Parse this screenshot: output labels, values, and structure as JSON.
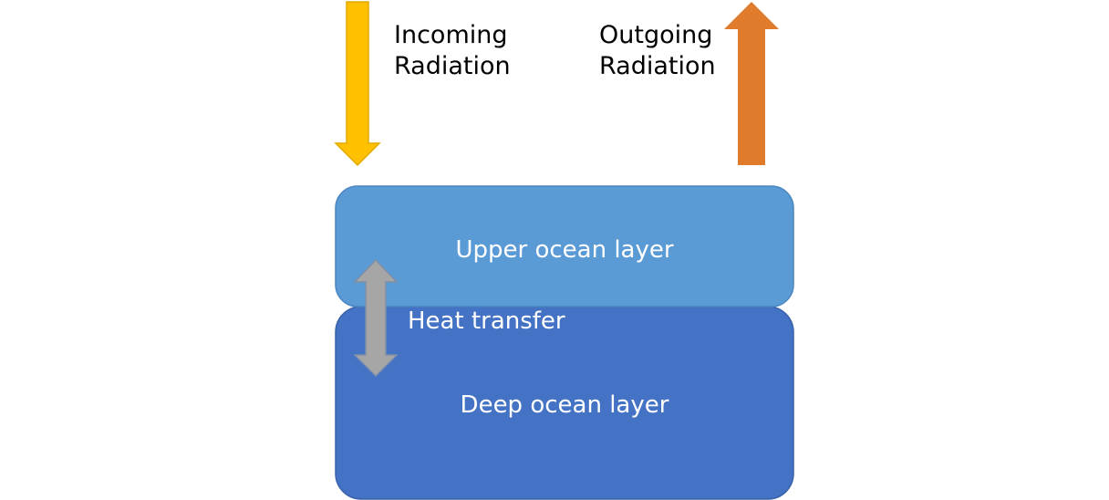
{
  "diagram": {
    "incoming": {
      "line1": "Incoming",
      "line2": "Radiation",
      "color": "#FFC000",
      "stroke": "#E5A800"
    },
    "outgoing": {
      "line1": "Outgoing",
      "line2": "Radiation",
      "color": "#E07B2C"
    },
    "upper_layer": {
      "label": "Upper ocean layer",
      "color": "#5B9BD5",
      "stroke": "#4A86C0"
    },
    "deep_layer": {
      "label": "Deep ocean layer",
      "color": "#4472C4",
      "stroke": "#3A62AA"
    },
    "heat_transfer": {
      "label": "Heat transfer",
      "color": "#A6A6A6",
      "stroke": "#7F8FA6"
    }
  }
}
